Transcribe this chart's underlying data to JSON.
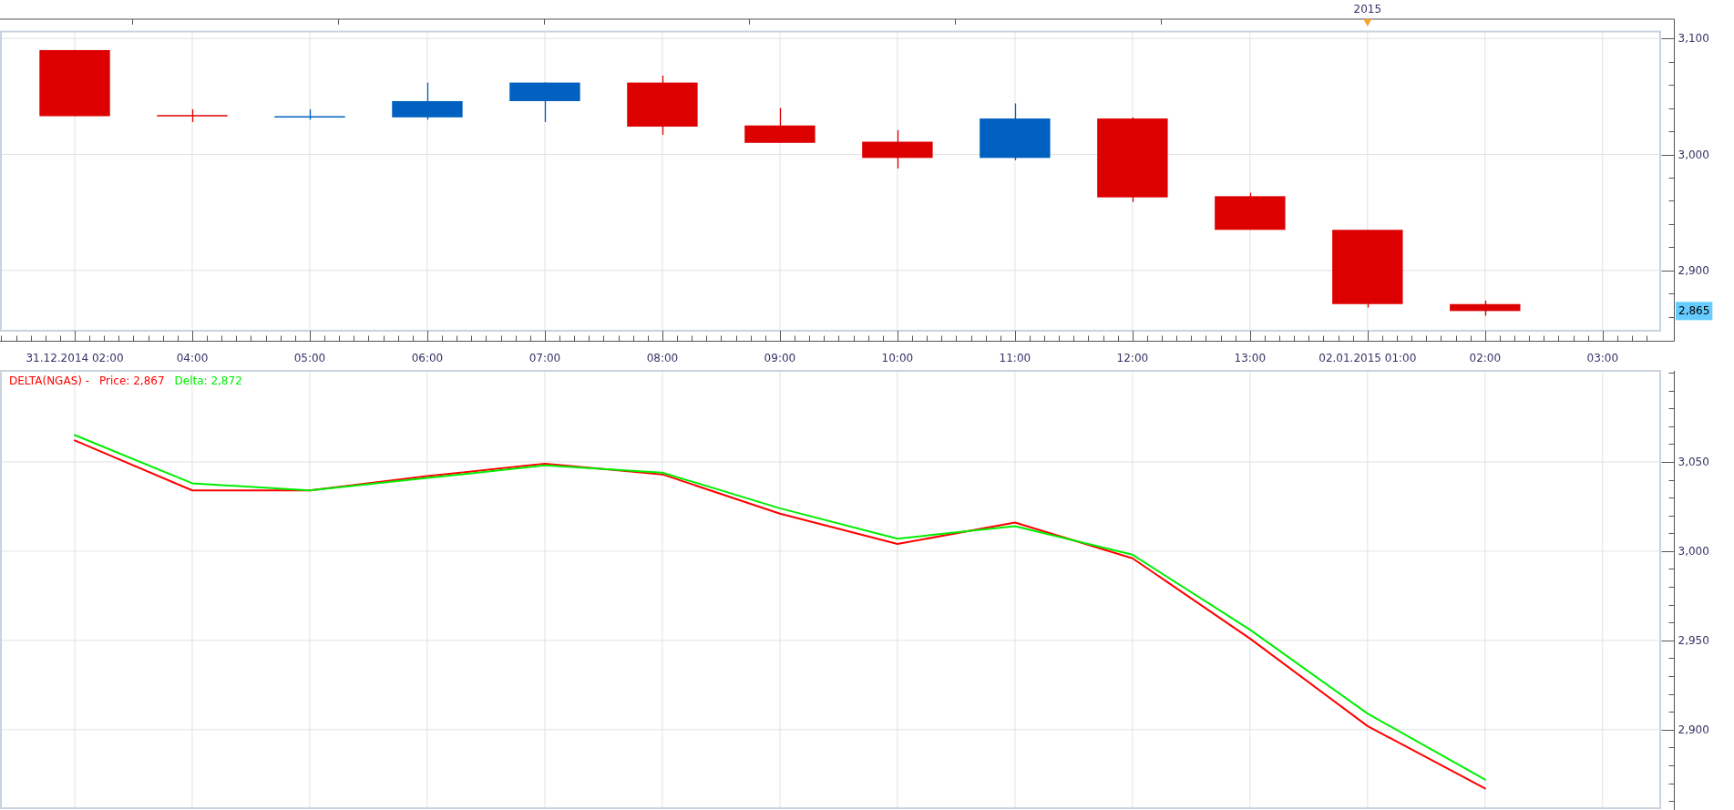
{
  "chart_data": [
    {
      "type": "candlestick",
      "categories": [
        "31.12.2014 02:00",
        "04:00",
        "05:00",
        "06:00",
        "07:00",
        "08:00",
        "09:00",
        "10:00",
        "11:00",
        "12:00",
        "13:00",
        "02.01.2015 01:00",
        "02:00",
        "03:00"
      ],
      "ohlc": [
        [
          3090,
          3090,
          3033,
          3033
        ],
        [
          3034,
          3039,
          3028,
          3033
        ],
        [
          3032,
          3039,
          3030,
          3033
        ],
        [
          3032,
          3062,
          3030,
          3046
        ],
        [
          3046,
          3062,
          3028,
          3062
        ],
        [
          3062,
          3068,
          3017,
          3024
        ],
        [
          3025,
          3040,
          3010,
          3010
        ],
        [
          3011,
          3021,
          2988,
          2997
        ],
        [
          2997,
          3044,
          2995,
          3031
        ],
        [
          3031,
          3032,
          2959,
          2963
        ],
        [
          2964,
          2967,
          2935,
          2935
        ],
        [
          2935,
          2935,
          2868,
          2871
        ],
        [
          2871,
          2874,
          2861,
          2865
        ],
        null
      ],
      "colors": [
        "#dd0000",
        "#dd0000",
        "#0060c0",
        "#0060c0",
        "#0060c0",
        "#dd0000",
        "#dd0000",
        "#dd0000",
        "#0060c0",
        "#dd0000",
        "#dd0000",
        "#dd0000",
        "#dd0000",
        null
      ],
      "ylim": [
        2848,
        3106
      ],
      "yticks": [
        {
          "value": 3100,
          "label": "3,100"
        },
        {
          "value": 3080,
          "label": null
        },
        {
          "value": 3060,
          "label": null
        },
        {
          "value": 3040,
          "label": null
        },
        {
          "value": 3020,
          "label": null
        },
        {
          "value": 3000,
          "label": "3,000"
        },
        {
          "value": 2980,
          "label": null
        },
        {
          "value": 2960,
          "label": null
        },
        {
          "value": 2940,
          "label": null
        },
        {
          "value": 2920,
          "label": null
        },
        {
          "value": 2900,
          "label": "2,900"
        },
        {
          "value": 2880,
          "label": null
        },
        {
          "value": 2860,
          "label": null
        }
      ],
      "grid": true,
      "annotations": [
        "2015",
        "2,865"
      ]
    },
    {
      "type": "line",
      "categories": [
        null,
        null,
        null,
        null,
        null,
        null,
        null,
        null,
        null,
        null,
        null,
        null,
        null,
        null
      ],
      "tick_labels": "y",
      "legend": "top left",
      "legend_title": "DELTA(NGAS) -",
      "line_style": "solid",
      "series": [
        {
          "name": "Price: 2,867",
          "color": "#ff0000",
          "values": [
            3062,
            3034,
            3034,
            3042,
            3049,
            3043,
            3021,
            3004,
            3016,
            2996,
            2951,
            2902,
            2867,
            null
          ]
        },
        {
          "name": "Delta: 2,872",
          "color": "#00ee00",
          "values": [
            3065,
            3038,
            3034,
            3041,
            3048,
            3044,
            3024,
            3007,
            3014,
            2998,
            2956,
            2909,
            2872,
            null
          ]
        }
      ],
      "ylim": [
        2856,
        3101
      ],
      "yticks": [
        {
          "value": 3100,
          "label": null
        },
        {
          "value": 3090,
          "label": null
        },
        {
          "value": 3080,
          "label": null
        },
        {
          "value": 3070,
          "label": null
        },
        {
          "value": 3060,
          "label": null
        },
        {
          "value": 3050,
          "label": "3,050"
        },
        {
          "value": 3040,
          "label": null
        },
        {
          "value": 3030,
          "label": null
        },
        {
          "value": 3020,
          "label": null
        },
        {
          "value": 3010,
          "label": null
        },
        {
          "value": 3000,
          "label": "3,000"
        },
        {
          "value": 2990,
          "label": null
        },
        {
          "value": 2980,
          "label": null
        },
        {
          "value": 2970,
          "label": null
        },
        {
          "value": 2960,
          "label": null
        },
        {
          "value": 2950,
          "label": "2,950"
        },
        {
          "value": 2940,
          "label": null
        },
        {
          "value": 2930,
          "label": null
        },
        {
          "value": 2920,
          "label": null
        },
        {
          "value": 2910,
          "label": null
        },
        {
          "value": 2900,
          "label": "2,900"
        },
        {
          "value": 2890,
          "label": null
        },
        {
          "value": 2880,
          "label": null
        },
        {
          "value": 2870,
          "label": null
        },
        {
          "value": 2860,
          "label": null
        }
      ],
      "grid": true
    }
  ]
}
